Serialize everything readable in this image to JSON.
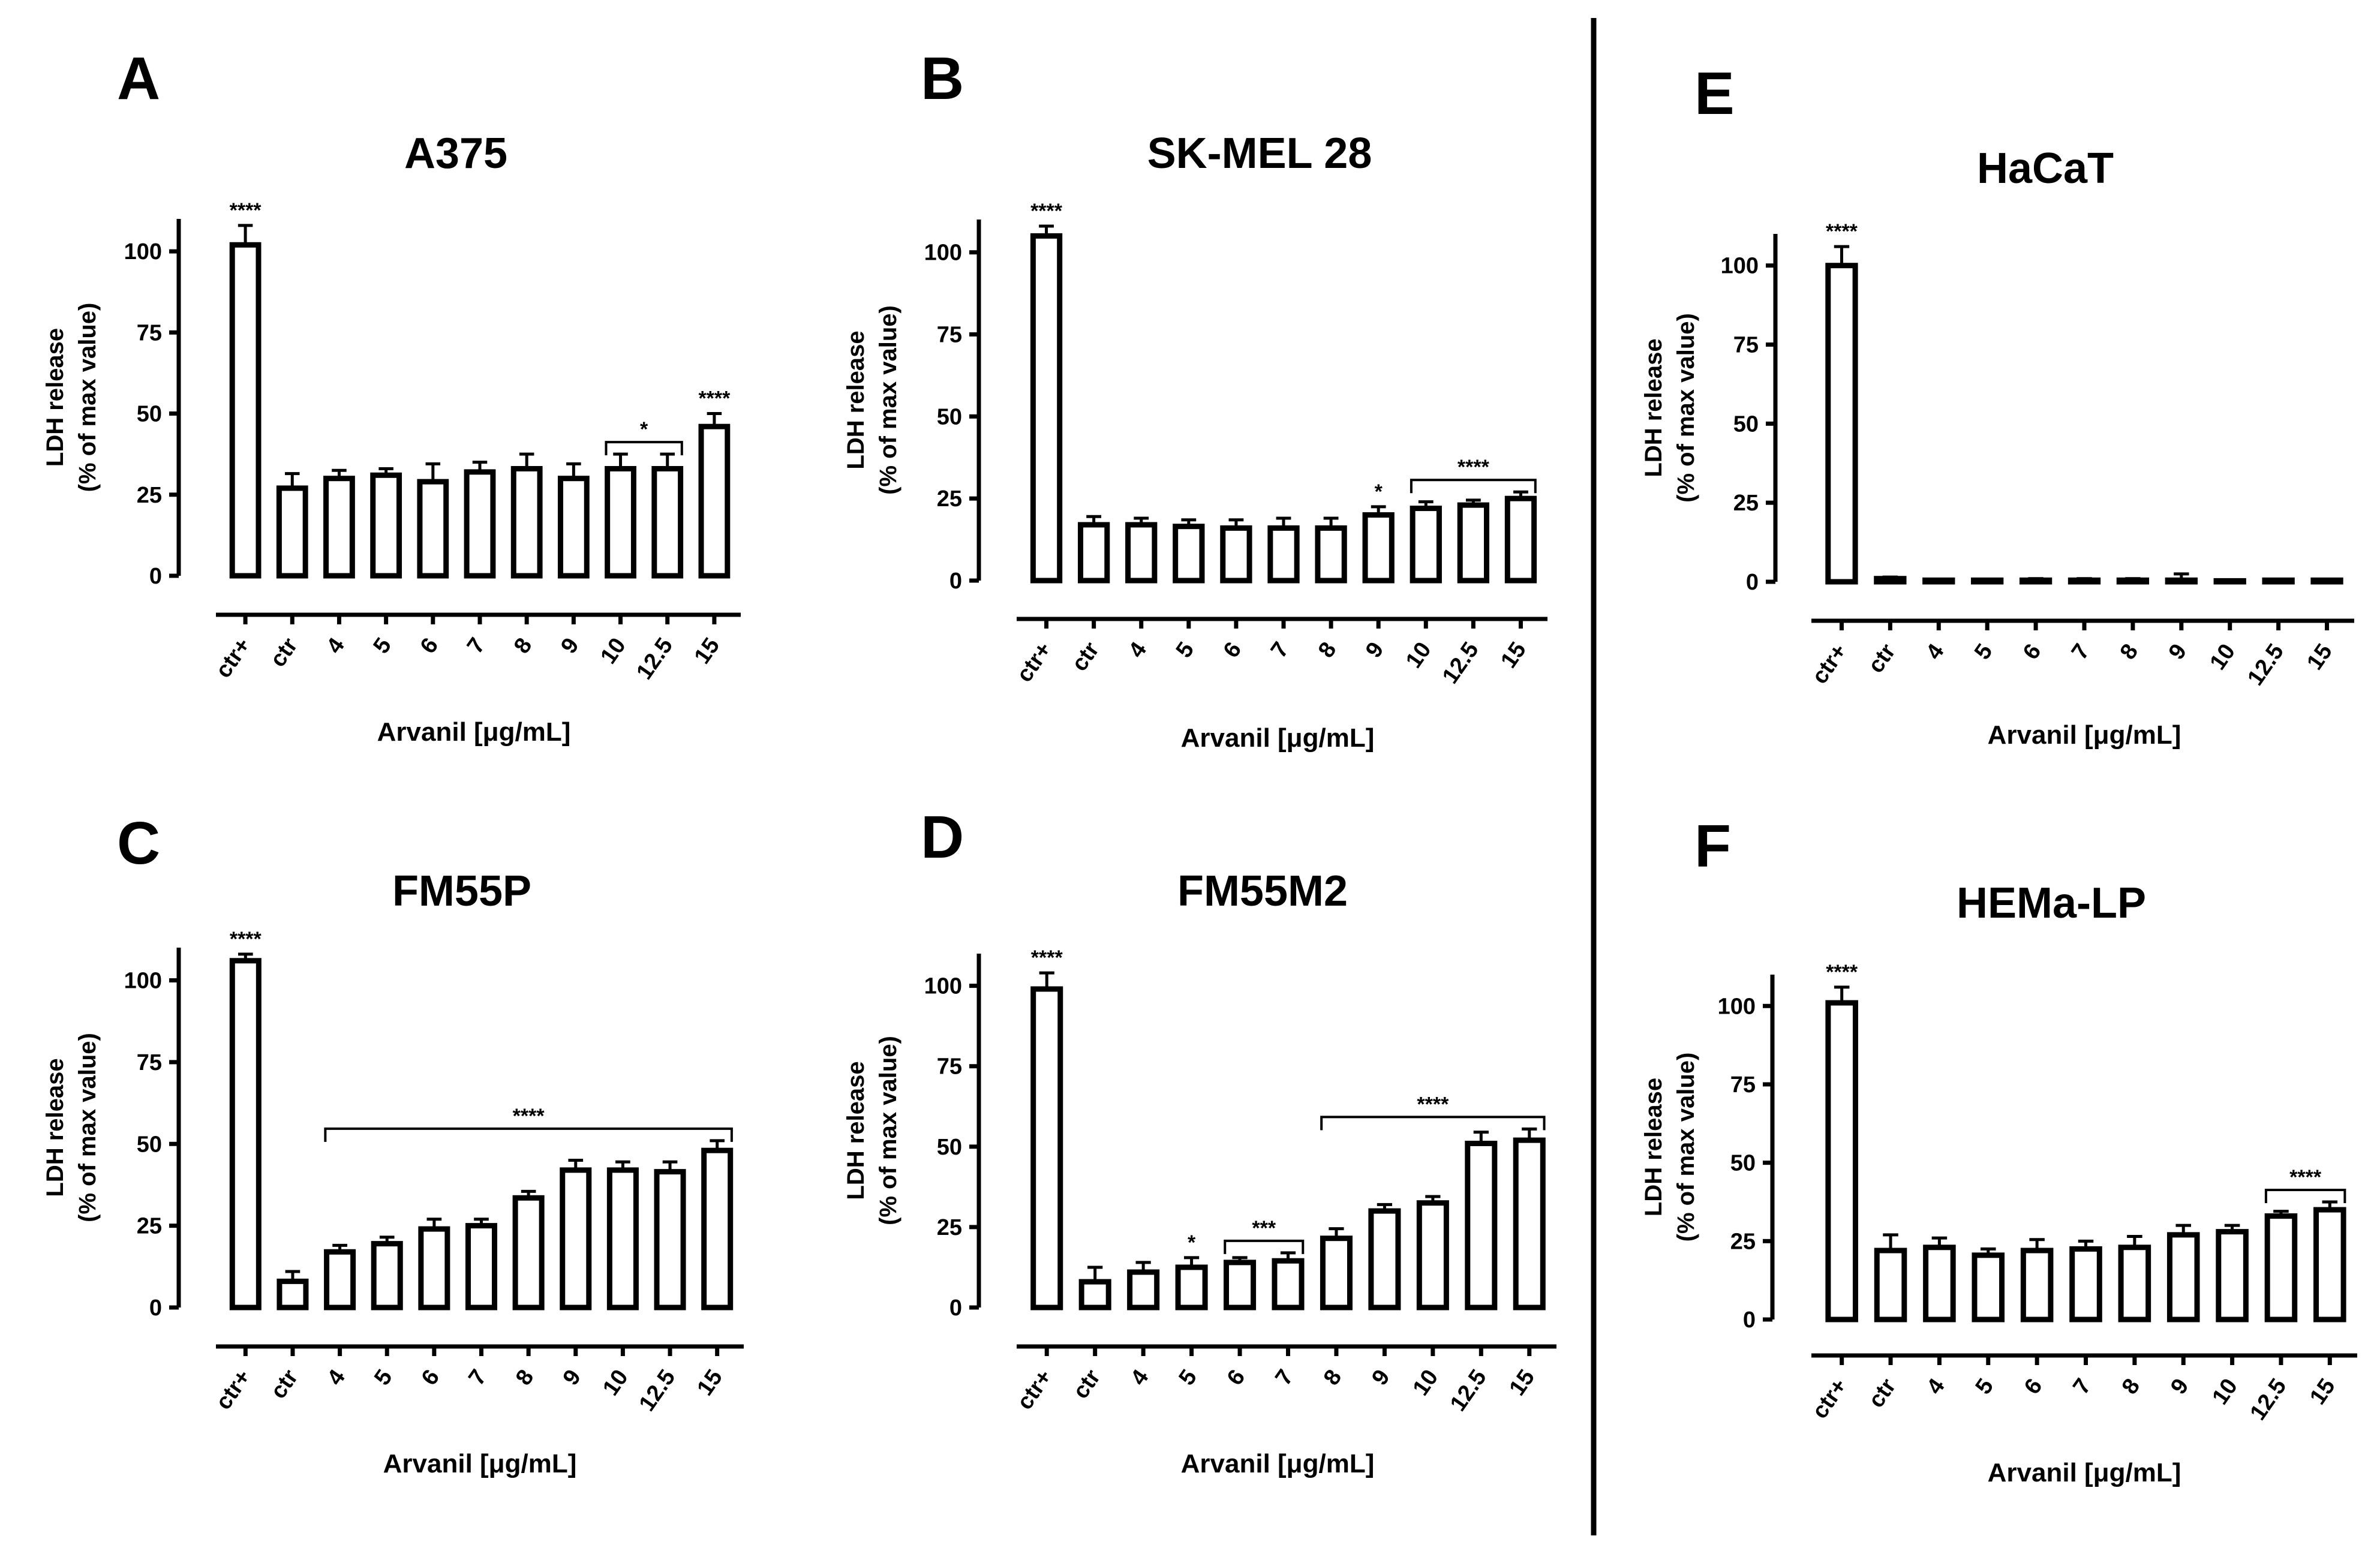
{
  "chart_data": [
    {
      "panel": "A",
      "title": "A375",
      "type": "bar",
      "ylabel": "LDH release\n(% of max value)",
      "xlabel": "Arvanil [μg/mL]",
      "ylim": [
        0,
        110
      ],
      "yticks": [
        0,
        25,
        50,
        75,
        100
      ],
      "categories": [
        "ctr+",
        "ctr",
        "4",
        "5",
        "6",
        "7",
        "8",
        "9",
        "10",
        "12.5",
        "15"
      ],
      "values": [
        102,
        27,
        30,
        31,
        29,
        32,
        33,
        30,
        33,
        33,
        46
      ],
      "errors": [
        6,
        4.5,
        2.5,
        2,
        5.5,
        3,
        4.5,
        4.5,
        4.5,
        4.5,
        4
      ],
      "annotations": [
        {
          "text": "****",
          "bars": [
            0,
            0
          ]
        },
        {
          "text": "*",
          "bars": [
            8,
            9
          ]
        },
        {
          "text": "****",
          "bars": [
            10,
            10
          ]
        }
      ]
    },
    {
      "panel": "B",
      "title": "SK-MEL 28",
      "type": "bar",
      "ylabel": "LDH release\n(% of max value)",
      "xlabel": "Arvanil [μg/mL]",
      "ylim": [
        0,
        110
      ],
      "yticks": [
        0,
        25,
        50,
        75,
        100
      ],
      "categories": [
        "ctr+",
        "ctr",
        "4",
        "5",
        "6",
        "7",
        "8",
        "9",
        "10",
        "12.5",
        "15"
      ],
      "values": [
        105,
        17,
        17,
        16.5,
        16,
        16,
        16,
        20,
        22,
        23,
        25
      ],
      "errors": [
        3,
        2.5,
        2,
        2,
        2.5,
        3,
        3,
        2.5,
        2,
        1.5,
        2
      ],
      "annotations": [
        {
          "text": "****",
          "bars": [
            0,
            0
          ]
        },
        {
          "text": "*",
          "bars": [
            7,
            7
          ]
        },
        {
          "text": "****",
          "bars": [
            8,
            10
          ]
        }
      ]
    },
    {
      "panel": "E",
      "title": "HaCaT",
      "type": "bar",
      "ylabel": "LDH release\n(% of max value)",
      "xlabel": "Arvanil [μg/mL]",
      "ylim": [
        0,
        110
      ],
      "yticks": [
        0,
        25,
        50,
        75,
        100
      ],
      "categories": [
        "ctr+",
        "ctr",
        "4",
        "5",
        "6",
        "7",
        "8",
        "9",
        "10",
        "12.5",
        "15"
      ],
      "values": [
        100,
        1,
        0.5,
        0.5,
        0.5,
        0.5,
        0.5,
        0.5,
        0.3,
        0.5,
        0.5
      ],
      "errors": [
        6,
        0.5,
        0.3,
        0.3,
        0.5,
        0.5,
        0.5,
        2,
        0.3,
        0.3,
        0.3
      ],
      "annotations": [
        {
          "text": "****",
          "bars": [
            0,
            0
          ]
        }
      ]
    },
    {
      "panel": "C",
      "title": "FM55P",
      "type": "bar",
      "ylabel": "LDH release\n(% of max value)",
      "xlabel": "Arvanil [μg/mL]",
      "ylim": [
        0,
        110
      ],
      "yticks": [
        0,
        25,
        50,
        75,
        100
      ],
      "categories": [
        "ctr+",
        "ctr",
        "4",
        "5",
        "6",
        "7",
        "8",
        "9",
        "10",
        "12.5",
        "15"
      ],
      "values": [
        106,
        8,
        17,
        19.5,
        24,
        25,
        33.5,
        42,
        42,
        41.5,
        48
      ],
      "errors": [
        2,
        3,
        2,
        2,
        3,
        2,
        2,
        3,
        2.5,
        3,
        3
      ],
      "annotations": [
        {
          "text": "****",
          "bars": [
            0,
            0
          ]
        },
        {
          "text": "****",
          "bars": [
            2,
            10
          ]
        }
      ]
    },
    {
      "panel": "D",
      "title": "FM55M2",
      "type": "bar",
      "ylabel": "LDH release\n(% of max value)",
      "xlabel": "Arvanil [μg/mL]",
      "ylim": [
        0,
        110
      ],
      "yticks": [
        0,
        25,
        50,
        75,
        100
      ],
      "categories": [
        "ctr+",
        "ctr",
        "4",
        "5",
        "6",
        "7",
        "8",
        "9",
        "10",
        "12.5",
        "15"
      ],
      "values": [
        99,
        8,
        11,
        12.5,
        14,
        14.5,
        21.5,
        30,
        32.5,
        51,
        52
      ],
      "errors": [
        5,
        4.5,
        3,
        3,
        1.5,
        2.5,
        3,
        2,
        2,
        3.5,
        3.5
      ],
      "annotations": [
        {
          "text": "****",
          "bars": [
            0,
            0
          ]
        },
        {
          "text": "*",
          "bars": [
            3,
            3
          ]
        },
        {
          "text": "***",
          "bars": [
            4,
            5
          ]
        },
        {
          "text": "****",
          "bars": [
            6,
            10
          ]
        }
      ]
    },
    {
      "panel": "F",
      "title": "HEMa-LP",
      "type": "bar",
      "ylabel": "LDH release\n(% of max value)",
      "xlabel": "Arvanil [μg/mL]",
      "ylim": [
        0,
        110
      ],
      "yticks": [
        0,
        25,
        50,
        75,
        100
      ],
      "categories": [
        "ctr+",
        "ctr",
        "4",
        "5",
        "6",
        "7",
        "8",
        "9",
        "10",
        "12.5",
        "15"
      ],
      "values": [
        101,
        22,
        23,
        20.5,
        22,
        22.5,
        23,
        27,
        28,
        33,
        35
      ],
      "errors": [
        5,
        5,
        3,
        2,
        3.5,
        2.5,
        3.5,
        3,
        2,
        1.5,
        2.5
      ],
      "annotations": [
        {
          "text": "****",
          "bars": [
            0,
            0
          ]
        },
        {
          "text": "****",
          "bars": [
            9,
            10
          ]
        }
      ]
    }
  ],
  "colors": {
    "bar_fill": "#ffffff",
    "stroke": "#000000"
  }
}
